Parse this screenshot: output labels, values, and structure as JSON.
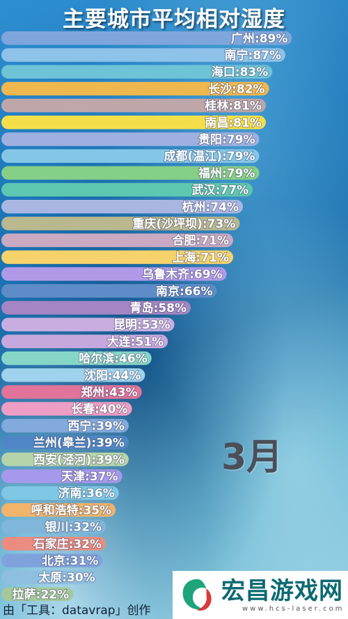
{
  "chart_data": {
    "type": "bar",
    "orientation": "horizontal",
    "title": "主要城市平均相对湿度",
    "period_label": "3月",
    "unit": "%",
    "xlim": [
      0,
      100
    ],
    "categories": [
      "广州",
      "南宁",
      "海口",
      "长沙",
      "桂林",
      "南昌",
      "贵阳",
      "成都(温江)",
      "福州",
      "武汉",
      "杭州",
      "重庆(沙坪坝)",
      "合肥",
      "上海",
      "乌鲁木齐",
      "南京",
      "青岛",
      "昆明",
      "大连",
      "哈尔滨",
      "沈阳",
      "郑州",
      "长春",
      "西宁",
      "兰州(皋兰)",
      "西安(泾河)",
      "天津",
      "济南",
      "呼和浩特",
      "银川",
      "石家庄",
      "北京",
      "太原",
      "拉萨"
    ],
    "values": [
      89,
      87,
      83,
      82,
      81,
      81,
      79,
      79,
      79,
      77,
      74,
      73,
      71,
      71,
      69,
      66,
      58,
      53,
      51,
      46,
      44,
      43,
      40,
      39,
      39,
      39,
      37,
      36,
      35,
      32,
      32,
      31,
      30,
      22
    ],
    "labels": [
      "广州:89%",
      "南宁:87%",
      "海口:83%",
      "长沙:82%",
      "桂林:81%",
      "南昌:81%",
      "贵阳:79%",
      "成都(温江):79%",
      "福州:79%",
      "武汉:77%",
      "杭州:74%",
      "重庆(沙坪坝):73%",
      "合肥:71%",
      "上海:71%",
      "乌鲁木齐:69%",
      "南京:66%",
      "青岛:58%",
      "昆明:53%",
      "大连:51%",
      "哈尔滨:46%",
      "沈阳:44%",
      "郑州:43%",
      "长春:40%",
      "西宁:39%",
      "兰州(皋兰):39%",
      "西安(泾河):39%",
      "天津:37%",
      "济南:36%",
      "呼和浩特:35%",
      "银川:32%",
      "石家庄:32%",
      "北京:31%",
      "太原:30%",
      "拉萨:22%"
    ],
    "colors": [
      "#7ea6dc",
      "#8ec2e8",
      "#6ec3d6",
      "#efb84e",
      "#bfa6a8",
      "#f4df4a",
      "#9eb0e0",
      "#84c6e6",
      "#86cf86",
      "#5ec7b0",
      "#aab6e2",
      "#bab88e",
      "#c9aac2",
      "#f5d26a",
      "#b09ae8",
      "#5e8cc8",
      "#a585c4",
      "#c8aee0",
      "#c6a8dc",
      "#86d6c8",
      "#9fd2ec",
      "#e2739a",
      "#ee9ec4",
      "#82aadc",
      "#4f87c6",
      "#b6d4aa",
      "#a698ec",
      "#7ec8e6",
      "#f1b46a",
      "#7fb6da",
      "#ec8c80",
      "#7fa2dc",
      "#8fbfe0",
      "#a4c89a"
    ],
    "grid": false,
    "legend": "none"
  },
  "footer": "由「工具：datavrap」创作",
  "logo": {
    "name": "宏昌游戏网",
    "url": "www.hcs-laser.com"
  },
  "colors": {
    "title": "#ffffff",
    "month": "#4a4f58",
    "logo_text": "#0c6a72"
  }
}
